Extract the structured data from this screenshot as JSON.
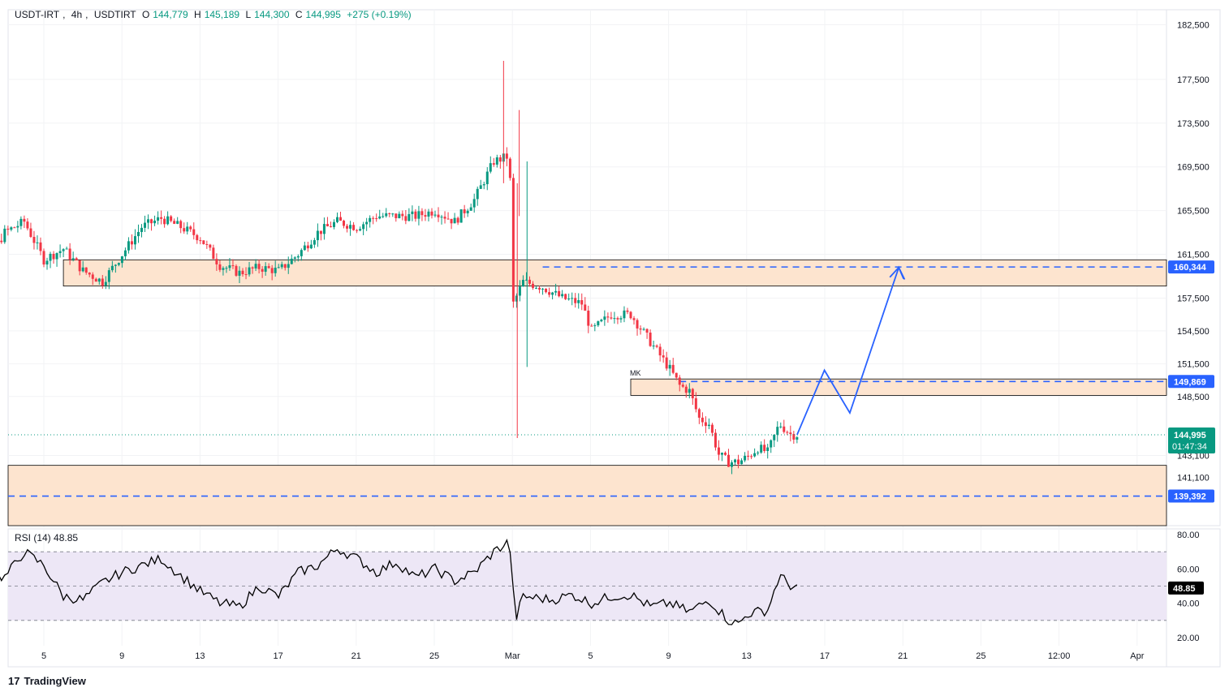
{
  "legend": {
    "symbol": "USDT-IRT",
    "interval": "4h",
    "exchange": "USDTIRT",
    "open_label": "O",
    "open": "144,779",
    "high_label": "H",
    "high": "145,189",
    "low_label": "L",
    "low": "144,300",
    "close_label": "C",
    "close": "144,995",
    "change": "+275 (+0.19%)"
  },
  "rsi_legend": {
    "name": "RSI (14)",
    "value": "48.85"
  },
  "brand": {
    "logo": "17",
    "name": "TradingView"
  },
  "colors": {
    "up": "#089981",
    "down": "#f23645",
    "zone_fill": "#fde4cf",
    "dash_line": "#2962ff",
    "projection": "#2962ff",
    "rsi_band": "#ede7f6",
    "price_label_bg": "#089981",
    "level_label_bg": "#2962ff"
  },
  "chart_data": [
    {
      "type": "candlestick",
      "symbol": "USDT-IRT",
      "interval": "4h",
      "y_axis_ticks": [
        "182,500",
        "177,500",
        "173,500",
        "169,500",
        "165,500",
        "161,500",
        "157,500",
        "154,500",
        "151,500",
        "148,500",
        "143,100",
        "141,100"
      ],
      "x_axis_ticks": [
        "5",
        "9",
        "13",
        "17",
        "21",
        "25",
        "Mar",
        "5",
        "9",
        "13",
        "17",
        "21",
        "25",
        "12:00",
        "Apr"
      ],
      "ylim": [
        135000,
        184000
      ],
      "current_price": {
        "value": "144,995",
        "countdown": "01:47:34"
      },
      "levels": [
        {
          "label": "160,344",
          "value": 160344,
          "style": "dashed"
        },
        {
          "label": "149,869",
          "value": 149869,
          "style": "dashed"
        },
        {
          "label": "139,392",
          "value": 139392,
          "style": "dashed"
        }
      ],
      "zones": [
        {
          "from": 158600,
          "to": 161000,
          "start": "Feb 6"
        },
        {
          "from": 148600,
          "to": 150100,
          "start": "Mar 7",
          "label": "MK"
        },
        {
          "from": 135200,
          "to": 142200,
          "start": "Feb 1"
        }
      ],
      "projection_path": [
        {
          "date": "Mar 15.5",
          "price": 144995
        },
        {
          "date": "Mar 16.9",
          "price": 150900
        },
        {
          "date": "Mar 18.2",
          "price": 147000
        },
        {
          "date": "Mar 20.7",
          "price": 160300
        },
        {
          "date": "Mar 21",
          "price": 159200
        }
      ],
      "ohlc_visible": {
        "open": 144779,
        "high": 145189,
        "low": 144300,
        "close": 144995
      }
    },
    {
      "type": "line",
      "name": "RSI (14)",
      "value": "48.85",
      "y_axis_ticks": [
        "80.00",
        "60.00",
        "40.00",
        "20.00"
      ],
      "ylim": [
        15,
        82
      ],
      "bands": {
        "upper": 70,
        "middle": 50,
        "lower": 30
      }
    }
  ]
}
